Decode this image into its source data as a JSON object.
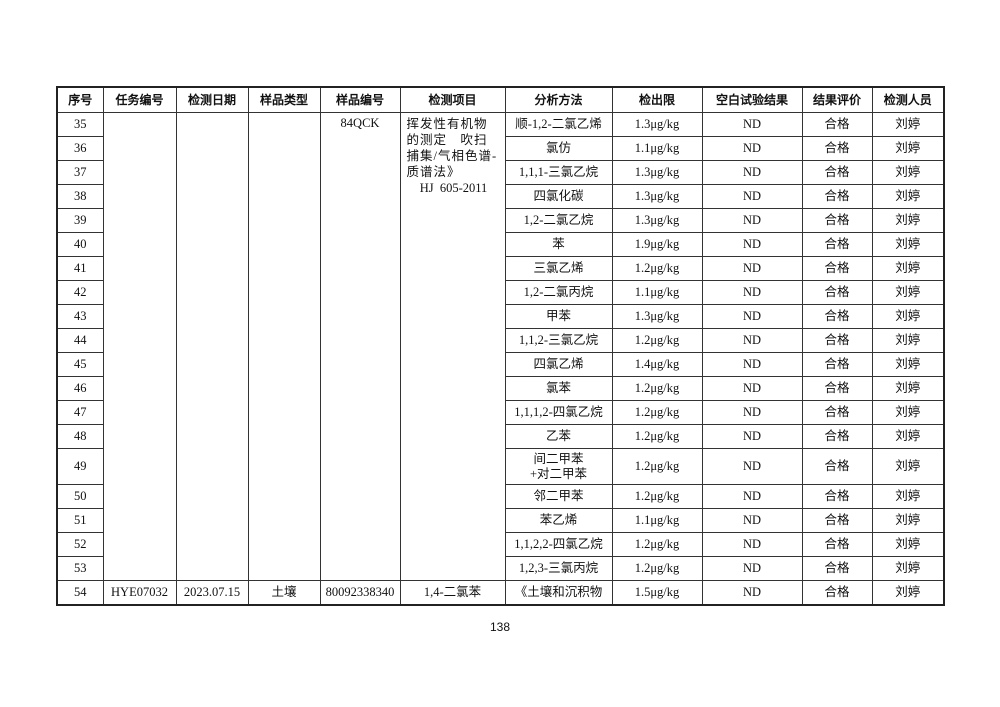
{
  "headers": [
    "序号",
    "任务编号",
    "检测日期",
    "样品类型",
    "样品编号",
    "检测项目",
    "分析方法",
    "检出限",
    "空白试验结果",
    "结果评价",
    "检测人员"
  ],
  "group": {
    "sample_no": "84QCK",
    "method": "挥发性有机物的测定　吹扫捕集/气相色谱-质谱法》",
    "method_std": "HJ  605-2011",
    "rows": [
      {
        "no": "35",
        "item": "顺-1,2-二氯乙烯",
        "limit": "1.3μg/kg",
        "blank": "ND",
        "eval": "合格",
        "person": "刘婷"
      },
      {
        "no": "36",
        "item": "氯仿",
        "limit": "1.1μg/kg",
        "blank": "ND",
        "eval": "合格",
        "person": "刘婷"
      },
      {
        "no": "37",
        "item": "1,1,1-三氯乙烷",
        "limit": "1.3μg/kg",
        "blank": "ND",
        "eval": "合格",
        "person": "刘婷"
      },
      {
        "no": "38",
        "item": "四氯化碳",
        "limit": "1.3μg/kg",
        "blank": "ND",
        "eval": "合格",
        "person": "刘婷"
      },
      {
        "no": "39",
        "item": "1,2-二氯乙烷",
        "limit": "1.3μg/kg",
        "blank": "ND",
        "eval": "合格",
        "person": "刘婷"
      },
      {
        "no": "40",
        "item": "苯",
        "limit": "1.9μg/kg",
        "blank": "ND",
        "eval": "合格",
        "person": "刘婷"
      },
      {
        "no": "41",
        "item": "三氯乙烯",
        "limit": "1.2μg/kg",
        "blank": "ND",
        "eval": "合格",
        "person": "刘婷"
      },
      {
        "no": "42",
        "item": "1,2-二氯丙烷",
        "limit": "1.1μg/kg",
        "blank": "ND",
        "eval": "合格",
        "person": "刘婷"
      },
      {
        "no": "43",
        "item": "甲苯",
        "limit": "1.3μg/kg",
        "blank": "ND",
        "eval": "合格",
        "person": "刘婷"
      },
      {
        "no": "44",
        "item": "1,1,2-三氯乙烷",
        "limit": "1.2μg/kg",
        "blank": "ND",
        "eval": "合格",
        "person": "刘婷"
      },
      {
        "no": "45",
        "item": "四氯乙烯",
        "limit": "1.4μg/kg",
        "blank": "ND",
        "eval": "合格",
        "person": "刘婷"
      },
      {
        "no": "46",
        "item": "氯苯",
        "limit": "1.2μg/kg",
        "blank": "ND",
        "eval": "合格",
        "person": "刘婷"
      },
      {
        "no": "47",
        "item": "1,1,1,2-四氯乙烷",
        "limit": "1.2μg/kg",
        "blank": "ND",
        "eval": "合格",
        "person": "刘婷"
      },
      {
        "no": "48",
        "item": "乙苯",
        "limit": "1.2μg/kg",
        "blank": "ND",
        "eval": "合格",
        "person": "刘婷"
      },
      {
        "no": "49",
        "item": "间二甲苯+对二甲苯",
        "limit": "1.2μg/kg",
        "blank": "ND",
        "eval": "合格",
        "person": "刘婷"
      },
      {
        "no": "50",
        "item": "邻二甲苯",
        "limit": "1.2μg/kg",
        "blank": "ND",
        "eval": "合格",
        "person": "刘婷"
      },
      {
        "no": "51",
        "item": "苯乙烯",
        "limit": "1.1μg/kg",
        "blank": "ND",
        "eval": "合格",
        "person": "刘婷"
      },
      {
        "no": "52",
        "item": "1,1,2,2-四氯乙烷",
        "limit": "1.2μg/kg",
        "blank": "ND",
        "eval": "合格",
        "person": "刘婷"
      },
      {
        "no": "53",
        "item": "1,2,3-三氯丙烷",
        "limit": "1.2μg/kg",
        "blank": "ND",
        "eval": "合格",
        "person": "刘婷"
      }
    ]
  },
  "last_row": {
    "no": "54",
    "task": "HYE07032",
    "date": "2023.07.15",
    "type": "土壤",
    "sample_no": "80092338340",
    "item": "1,4-二氯苯",
    "method": "《土壤和沉积物",
    "limit": "1.5μg/kg",
    "blank": "ND",
    "eval": "合格",
    "person": "刘婷"
  },
  "page_number": "138"
}
